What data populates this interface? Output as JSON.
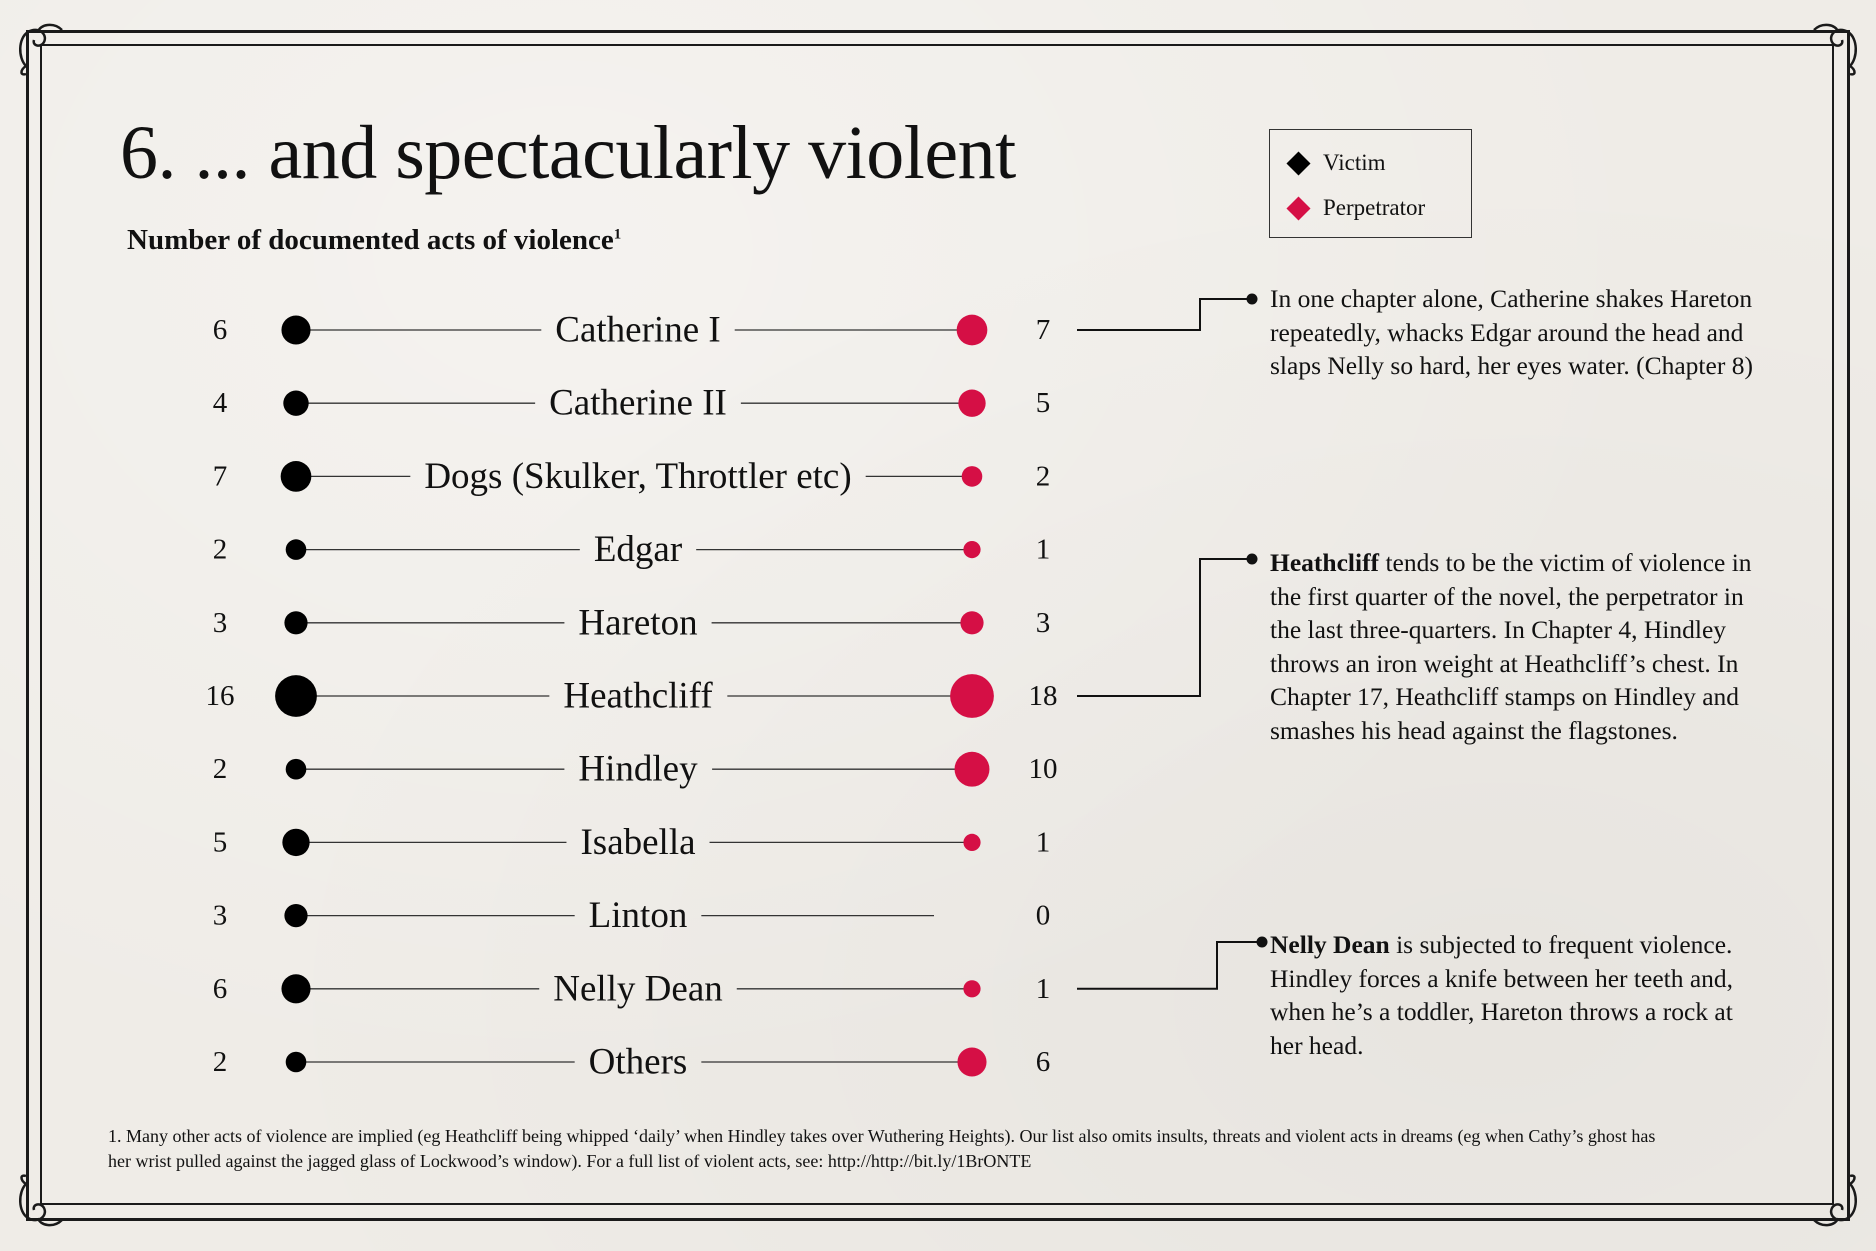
{
  "title": "6. ... and spectacularly violent",
  "subtitle": "Number of documented acts of violence",
  "subtitle_footnote_marker": "1",
  "legend": {
    "victim_label": "Victim",
    "perpetrator_label": "Perpetrator"
  },
  "colors": {
    "victim": "#000000",
    "perpetrator": "#d50f45",
    "line": "#333333"
  },
  "chart_data": {
    "type": "dot-pair",
    "title": "6. ... and spectacularly violent",
    "subtitle": "Number of documented acts of violence",
    "categories": [
      "Catherine I",
      "Catherine II",
      "Dogs (Skulker, Throttler etc)",
      "Edgar",
      "Hareton",
      "Heathcliff",
      "Hindley",
      "Isabella",
      "Linton",
      "Nelly Dean",
      "Others"
    ],
    "series": [
      {
        "name": "Victim",
        "values": [
          6,
          4,
          7,
          2,
          3,
          16,
          2,
          5,
          3,
          6,
          2
        ]
      },
      {
        "name": "Perpetrator",
        "values": [
          7,
          5,
          2,
          1,
          3,
          18,
          10,
          1,
          0,
          1,
          6
        ]
      }
    ],
    "legend": "top-right"
  },
  "notes": [
    {
      "bold": "",
      "text": "In one chapter alone, Catherine shakes Hareton repeatedly, whacks Edgar around the head and slaps Nelly so hard, her eyes water. (Chapter 8)"
    },
    {
      "bold": "Heathcliff",
      "text": " tends to be the victim of violence in the first quarter of the novel, the perpetrator in the last three-quarters. In Chapter 4, Hindley throws an iron weight at Heathcliff’s chest. In Chapter 17, Heathcliff stamps on Hindley and smashes his head against the flagstones."
    },
    {
      "bold": "Nelly Dean",
      "text": " is subjected to frequent violence. Hindley forces a knife between her teeth and, when he’s a toddler, Hareton throws a rock at her head."
    }
  ],
  "footnote": "1. Many other acts of violence are implied (eg Heathcliff being whipped ‘daily’ when Hindley takes over Wuthering Heights). Our list also omits insults, threats and violent acts in dreams (eg when Cathy’s ghost has her wrist pulled against the jagged glass of Lockwood’s window). For a full list of violent acts, see: http://http://bit.ly/1BrONTE"
}
